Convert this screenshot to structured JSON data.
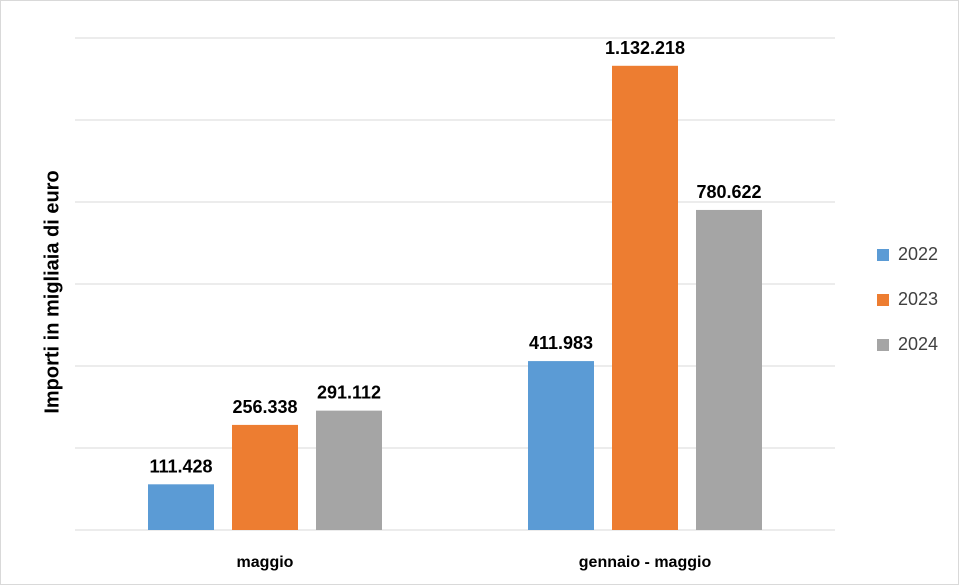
{
  "chart_data": {
    "type": "bar",
    "categories": [
      "maggio",
      "gennaio - maggio"
    ],
    "series": [
      {
        "name": "2022",
        "values": [
          111428,
          411983
        ],
        "labels": [
          "111.428",
          "411.983"
        ],
        "color": "#5b9bd5"
      },
      {
        "name": "2023",
        "values": [
          256338,
          1132218
        ],
        "labels": [
          "256.338",
          "1.132.218"
        ],
        "color": "#ed7d31"
      },
      {
        "name": "2024",
        "values": [
          291112,
          780622
        ],
        "labels": [
          "291.112",
          "780.622"
        ],
        "color": "#a5a5a5"
      }
    ],
    "ylabel": "Importi in migliaia di euro",
    "xlabel": "",
    "ylim": [
      0,
      1200000
    ],
    "grid": true,
    "legend_position": "right"
  }
}
